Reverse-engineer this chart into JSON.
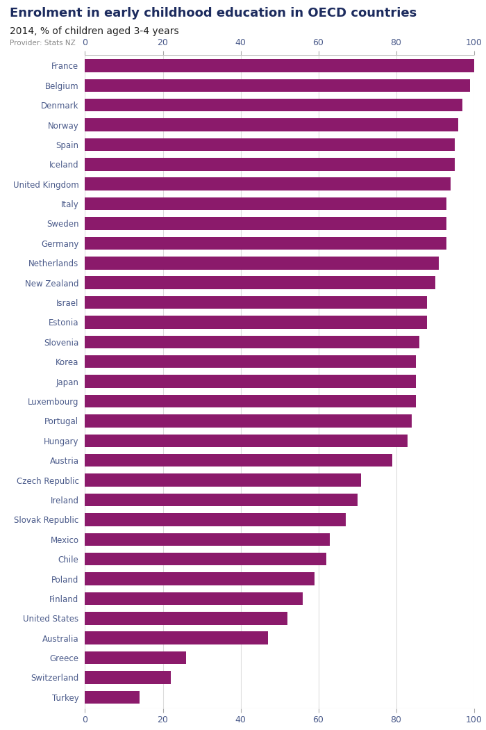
{
  "title": "Enrolment in early childhood education in OECD countries",
  "subtitle": "2014, % of children aged 3-4 years",
  "provider": "Provider: Stats NZ",
  "bar_color": "#8B1A6B",
  "label_color": "#4A5A8A",
  "axis_color": "#AAAAAA",
  "bg_color": "#FFFFFF",
  "logo_bg": "#5B5EA6",
  "countries": [
    "France",
    "Belgium",
    "Denmark",
    "Norway",
    "Spain",
    "Iceland",
    "United Kingdom",
    "Italy",
    "Sweden",
    "Germany",
    "Netherlands",
    "New Zealand",
    "Israel",
    "Estonia",
    "Slovenia",
    "Korea",
    "Japan",
    "Luxembourg",
    "Portugal",
    "Hungary",
    "Austria",
    "Czech Republic",
    "Ireland",
    "Slovak Republic",
    "Mexico",
    "Chile",
    "Poland",
    "Finland",
    "United States",
    "Australia",
    "Greece",
    "Switzerland",
    "Turkey"
  ],
  "values": [
    100,
    99,
    97,
    96,
    95,
    95,
    94,
    93,
    93,
    93,
    91,
    90,
    88,
    88,
    86,
    85,
    85,
    85,
    84,
    83,
    79,
    71,
    70,
    67,
    63,
    62,
    59,
    56,
    52,
    47,
    26,
    22,
    14
  ],
  "xlim": [
    0,
    100
  ],
  "xticks": [
    0,
    20,
    40,
    60,
    80,
    100
  ],
  "title_fontsize": 13,
  "subtitle_fontsize": 10,
  "provider_fontsize": 7.5,
  "tick_fontsize": 9,
  "label_fontsize": 8.5
}
